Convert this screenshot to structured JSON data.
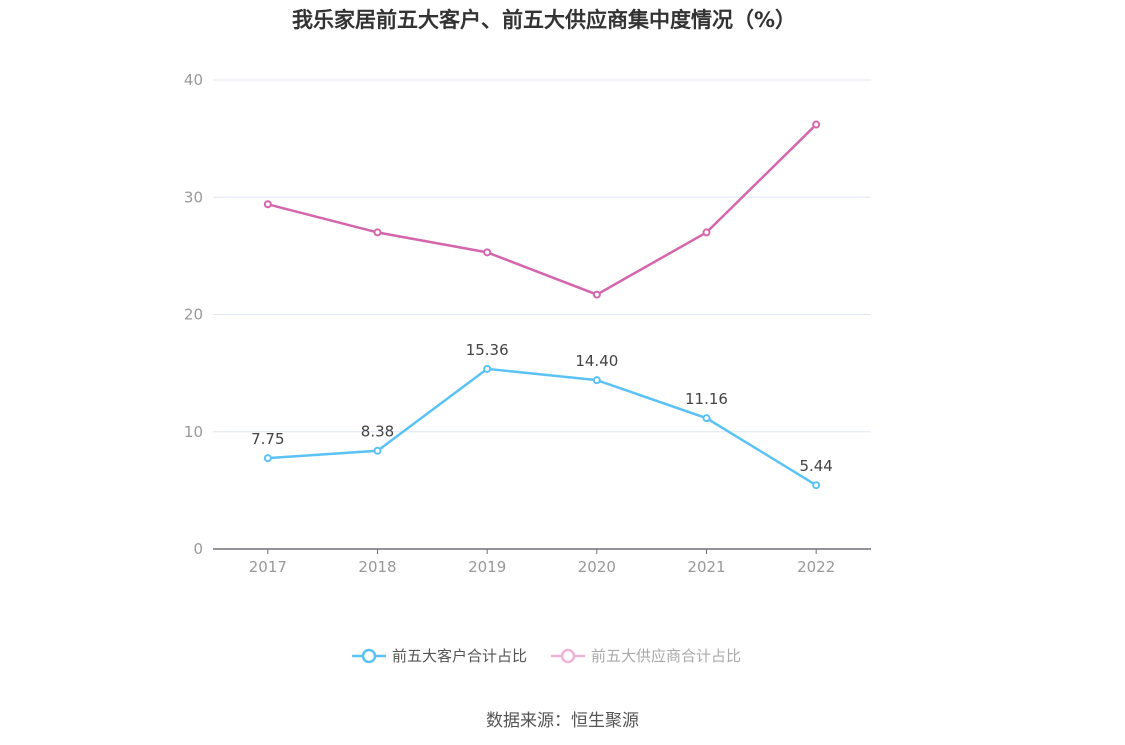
{
  "title": "我乐家居前五大客户、前五大供应商集中度情况（%）",
  "source": "数据来源：恒生聚源",
  "chart_data": {
    "type": "line",
    "title": "我乐家居前五大客户、前五大供应商集中度情况（%）",
    "categories": [
      "2017",
      "2018",
      "2019",
      "2020",
      "2021",
      "2022"
    ],
    "ylim": [
      0,
      40
    ],
    "yticks": [
      0,
      10,
      20,
      30,
      40
    ],
    "grid": true,
    "legend_placement": "bottom",
    "series": [
      {
        "name": "前五大客户合计占比",
        "color": "#5bc2f5",
        "values": [
          7.75,
          8.38,
          15.36,
          14.4,
          11.16,
          5.44
        ],
        "labels": [
          "7.75",
          "8.38",
          "15.36",
          "14.40",
          "11.16",
          "5.44"
        ]
      },
      {
        "name": "前五大供应商合计占比",
        "color": "#d466ad",
        "legend_color": "#f0b3d8",
        "values": [
          29.4,
          27.0,
          25.3,
          21.7,
          27.0,
          36.2
        ]
      }
    ]
  }
}
